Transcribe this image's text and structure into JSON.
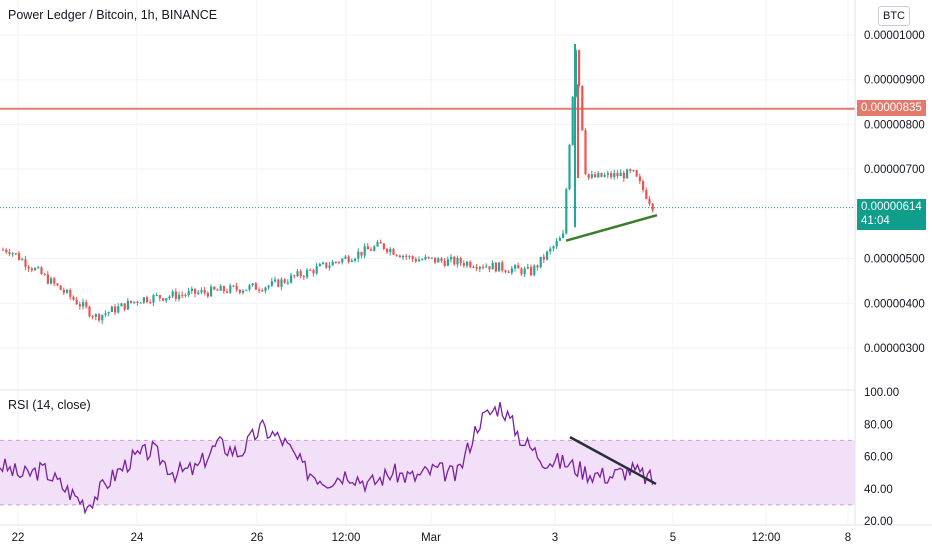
{
  "header": {
    "title": "Power Ledger / Bitcoin, 1h, BINANCE",
    "currency_button": "BTC"
  },
  "price_tags": {
    "resistance": "0.00000835",
    "current_price": "0.00000614",
    "countdown": "41:04"
  },
  "colors": {
    "up": "#26a69a",
    "down": "#ef5350",
    "resistance_line": "#e57a6c",
    "current_line": "#0f9d8c",
    "trendline": "#3a7d2a",
    "rsi_line": "#7b1fa2",
    "rsi_band": "#f1e0f7"
  },
  "rsi_panel": {
    "label": "RSI (14, close)"
  },
  "chart_data": [
    {
      "type": "candlestick",
      "title": "Power Ledger / Bitcoin, 1h, BINANCE",
      "ylim": [
        2.5e-06,
        1.06e-05
      ],
      "y_ticks": [
        "0.00001000",
        "0.00000900",
        "0.00000800",
        "0.00000700",
        "0.00000500",
        "0.00000400",
        "0.00000300"
      ],
      "x_ticks": [
        "22",
        "24",
        "26",
        "12:00",
        "Mar",
        "3",
        "5",
        "12:00",
        "8"
      ],
      "resistance_level": 8.35e-06,
      "last_price": 6.14e-06,
      "trendline": {
        "from_price": 5.4e-06,
        "to_price": 5.97e-06
      },
      "key_points": [
        {
          "t": "22",
          "price": 5.2e-06
        },
        {
          "t": "23",
          "price": 3.7e-06
        },
        {
          "t": "24",
          "price": 4.1e-06
        },
        {
          "t": "26",
          "price": 4.4e-06
        },
        {
          "t": "27",
          "price": 5.3e-06
        },
        {
          "t": "28",
          "price": 5e-06
        },
        {
          "t": "Mar 1",
          "price": 4.9e-06
        },
        {
          "t": "Mar 2",
          "price": 4.7e-06
        },
        {
          "t": "3",
          "price": 5.5e-06
        },
        {
          "t": "3 peak",
          "price": 9.8e-06
        },
        {
          "t": "3 pullback",
          "price": 6.8e-06
        },
        {
          "t": "4",
          "price": 6.9e-06
        },
        {
          "t": "last",
          "price": 6.14e-06
        }
      ]
    },
    {
      "type": "line",
      "title": "RSI (14, close)",
      "ylim": [
        20,
        100
      ],
      "y_ticks": [
        "100.00",
        "80.00",
        "60.00",
        "40.00",
        "20.00"
      ],
      "bands": [
        30,
        70
      ],
      "trendline": {
        "from_value": 72,
        "to_value": 43
      },
      "key_points": [
        55,
        48,
        52,
        40,
        30,
        45,
        58,
        64,
        50,
        52,
        68,
        62,
        78,
        70,
        52,
        45,
        50,
        43,
        50,
        47,
        52,
        48,
        82,
        92,
        70,
        58,
        56,
        50,
        48,
        52,
        45
      ]
    }
  ]
}
